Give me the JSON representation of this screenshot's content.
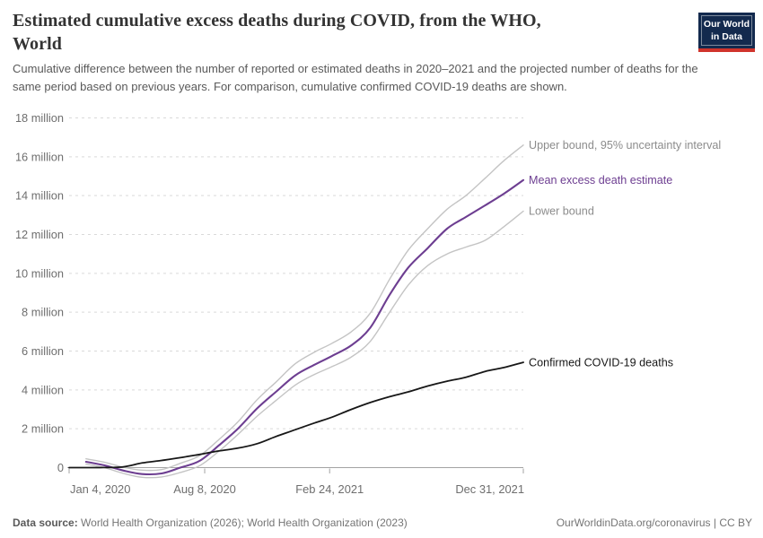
{
  "logo": {
    "line1": "Our World",
    "line2": "in Data"
  },
  "colors": {
    "accent_purple": "#6d3e91",
    "bound_gray": "#c4c4c4",
    "label_gray": "#8c8c8c",
    "confirmed_black": "#171717",
    "grid_gray": "#d9d9d9",
    "axis_gray": "#a3a3a3",
    "tick_text_gray": "#6e6e6e",
    "logo_navy": "#132a4e",
    "logo_red": "#d0342c"
  },
  "chart_data": {
    "type": "line",
    "title": "Estimated cumulative excess deaths during COVID, from the WHO, World",
    "subtitle": "Cumulative difference between the number of reported or estimated deaths in 2020–2021 and the projected number of deaths for the same period based on previous years. For comparison, cumulative confirmed COVID-19 deaths are shown.",
    "unit": "million deaths",
    "legend_position": "line-end-labels-right",
    "x_axis": {
      "tick_labels": [
        "Jan 4, 2020",
        "Aug 8, 2020",
        "Feb 24, 2021",
        "Dec 31, 2021"
      ],
      "tick_days": [
        0,
        217,
        417,
        727
      ],
      "anchors": [
        "start",
        "middle",
        "middle",
        "end"
      ],
      "range_days": [
        0,
        727
      ]
    },
    "y_axis": {
      "tick_values": [
        0,
        2,
        4,
        6,
        8,
        10,
        12,
        14,
        16,
        18
      ],
      "tick_labels": [
        "0",
        "2 million",
        "4 million",
        "6 million",
        "8 million",
        "10 million",
        "12 million",
        "14 million",
        "16 million",
        "18 million"
      ],
      "range": [
        0,
        18
      ],
      "grid": "dashed"
    },
    "series": [
      {
        "name": "Upper bound, 95% uncertainty interval",
        "role": "upper-bound",
        "color": "#c4c4c4",
        "label_color": "#8c8c8c",
        "width": 1.4,
        "days": [
          27,
          56,
          87,
          117,
          148,
          178,
          209,
          240,
          270,
          301,
          331,
          362,
          393,
          421,
          452,
          482,
          513,
          543,
          574,
          605,
          635,
          666,
          696,
          727
        ],
        "values": [
          0.45,
          0.28,
          0.02,
          -0.13,
          -0.1,
          0.22,
          0.62,
          1.45,
          2.35,
          3.5,
          4.4,
          5.35,
          5.95,
          6.4,
          7.0,
          7.95,
          9.7,
          11.2,
          12.3,
          13.3,
          14.0,
          14.9,
          15.8,
          16.6
        ]
      },
      {
        "name": "Mean excess death estimate",
        "role": "mean-estimate",
        "color": "#6d3e91",
        "label_color": "#6d3e91",
        "width": 2.1,
        "days": [
          27,
          56,
          87,
          117,
          148,
          178,
          209,
          240,
          270,
          301,
          331,
          362,
          393,
          421,
          452,
          482,
          513,
          543,
          574,
          605,
          635,
          666,
          696,
          727
        ],
        "values": [
          0.3,
          0.12,
          -0.15,
          -0.33,
          -0.3,
          0.0,
          0.35,
          1.15,
          2.0,
          3.05,
          3.9,
          4.75,
          5.3,
          5.75,
          6.3,
          7.2,
          8.9,
          10.3,
          11.3,
          12.3,
          12.9,
          13.5,
          14.1,
          14.8
        ]
      },
      {
        "name": "Lower bound",
        "role": "lower-bound",
        "color": "#c4c4c4",
        "label_color": "#8c8c8c",
        "width": 1.4,
        "days": [
          27,
          56,
          87,
          117,
          148,
          178,
          209,
          240,
          270,
          301,
          331,
          362,
          393,
          421,
          452,
          482,
          513,
          543,
          574,
          605,
          635,
          666,
          696,
          727
        ],
        "values": [
          0.18,
          0.0,
          -0.3,
          -0.5,
          -0.48,
          -0.25,
          0.1,
          0.85,
          1.7,
          2.65,
          3.45,
          4.25,
          4.8,
          5.2,
          5.7,
          6.5,
          8.0,
          9.4,
          10.4,
          11.0,
          11.35,
          11.7,
          12.4,
          13.2
        ]
      },
      {
        "name": "Confirmed COVID-19 deaths",
        "role": "confirmed-deaths",
        "color": "#171717",
        "label_color": "#171717",
        "width": 1.8,
        "days": [
          0,
          27,
          56,
          87,
          117,
          148,
          178,
          209,
          240,
          270,
          301,
          331,
          362,
          393,
          421,
          452,
          482,
          513,
          543,
          574,
          605,
          635,
          666,
          696,
          727
        ],
        "values": [
          0.0,
          0.0,
          0.003,
          0.04,
          0.24,
          0.37,
          0.51,
          0.68,
          0.86,
          1.0,
          1.23,
          1.6,
          1.95,
          2.3,
          2.6,
          3.0,
          3.35,
          3.65,
          3.9,
          4.2,
          4.45,
          4.65,
          4.95,
          5.15,
          5.42
        ]
      }
    ]
  },
  "footer": {
    "datasource_label": "Data source:",
    "datasource_value": " World Health Organization (2026); World Health Organization (2023)",
    "credit": "OurWorldinData.org/coronavirus | CC BY"
  }
}
